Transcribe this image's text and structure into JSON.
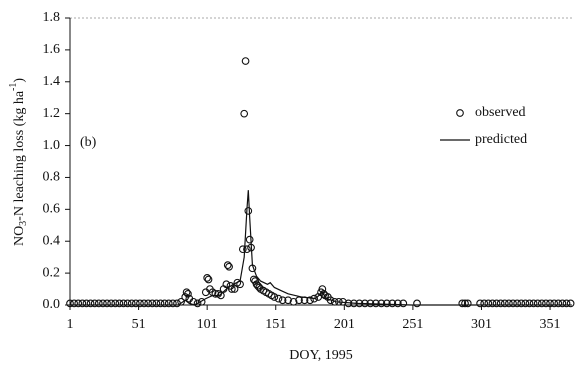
{
  "chart_data": {
    "type": "scatter-line",
    "annotation": "(b)",
    "xlabel": "DOY, 1995",
    "ylabel_parts": [
      "NO",
      "3",
      "-N leaching loss (kg ha",
      "-1",
      ")"
    ],
    "xlim": [
      1,
      367
    ],
    "ylim": [
      0,
      1.8
    ],
    "xticks": [
      1,
      51,
      101,
      151,
      201,
      251,
      301,
      351
    ],
    "yticks": [
      {
        "value": 0,
        "label": "0.0"
      },
      0.2,
      0.4,
      0.6,
      0.8,
      {
        "value": 1,
        "label": "1.0"
      },
      1.2,
      1.4,
      1.6,
      1.8
    ],
    "legend": "right",
    "series": [
      {
        "name": "observed",
        "color": "#111111",
        "marker": "circle",
        "x": [
          1,
          4,
          7,
          10,
          13,
          16,
          19,
          22,
          25,
          28,
          31,
          34,
          37,
          40,
          43,
          46,
          49,
          52,
          55,
          58,
          61,
          64,
          67,
          70,
          73,
          76,
          79,
          82,
          85,
          86,
          87,
          88,
          91,
          94,
          97,
          100,
          101,
          102,
          103,
          105,
          107,
          109,
          111,
          113,
          115,
          116,
          117,
          118,
          119,
          121,
          123,
          125,
          127,
          128,
          129,
          130,
          131,
          132,
          133,
          134,
          135,
          136,
          137,
          138,
          139,
          140,
          142,
          144,
          146,
          148,
          150,
          153,
          156,
          160,
          164,
          168,
          172,
          176,
          179,
          182,
          184,
          185,
          186,
          187,
          189,
          191,
          194,
          197,
          200,
          204,
          208,
          212,
          216,
          220,
          224,
          228,
          232,
          236,
          240,
          244,
          254,
          287,
          289,
          291,
          300,
          303,
          306,
          309,
          312,
          315,
          318,
          321,
          324,
          327,
          330,
          333,
          336,
          339,
          342,
          345,
          348,
          351,
          354,
          357,
          360,
          363,
          366
        ],
        "values": [
          0.01,
          0.01,
          0.01,
          0.01,
          0.01,
          0.01,
          0.01,
          0.01,
          0.01,
          0.01,
          0.01,
          0.01,
          0.01,
          0.01,
          0.01,
          0.01,
          0.01,
          0.01,
          0.01,
          0.01,
          0.01,
          0.01,
          0.01,
          0.01,
          0.01,
          0.01,
          0.01,
          0.02,
          0.05,
          0.08,
          0.07,
          0.04,
          0.02,
          0.01,
          0.02,
          0.08,
          0.17,
          0.16,
          0.1,
          0.08,
          0.07,
          0.07,
          0.06,
          0.1,
          0.13,
          0.25,
          0.24,
          0.12,
          0.1,
          0.1,
          0.14,
          0.13,
          0.35,
          1.2,
          1.53,
          0.35,
          0.59,
          0.41,
          0.36,
          0.23,
          0.16,
          0.15,
          0.13,
          0.12,
          0.11,
          0.1,
          0.09,
          0.08,
          0.07,
          0.06,
          0.05,
          0.04,
          0.03,
          0.03,
          0.02,
          0.03,
          0.03,
          0.03,
          0.04,
          0.05,
          0.08,
          0.1,
          0.07,
          0.06,
          0.05,
          0.03,
          0.02,
          0.02,
          0.02,
          0.01,
          0.01,
          0.01,
          0.01,
          0.01,
          0.01,
          0.01,
          0.01,
          0.01,
          0.01,
          0.01,
          0.01,
          0.01,
          0.01,
          0.01,
          0.01,
          0.01,
          0.01,
          0.01,
          0.01,
          0.01,
          0.01,
          0.01,
          0.01,
          0.01,
          0.01,
          0.01,
          0.01,
          0.01,
          0.01,
          0.01,
          0.01,
          0.01,
          0.01,
          0.01,
          0.01,
          0.01,
          0.01
        ]
      },
      {
        "name": "predicted",
        "color": "#111111",
        "marker": "line",
        "x": [
          1,
          80,
          85,
          88,
          92,
          100,
          105,
          110,
          115,
          120,
          125,
          128,
          130,
          131,
          132,
          134,
          137,
          140,
          145,
          147,
          150,
          155,
          160,
          170,
          180,
          185,
          188,
          195,
          210,
          250,
          300,
          366
        ],
        "values": [
          0,
          0,
          0.03,
          0.01,
          0,
          0.04,
          0.06,
          0.06,
          0.1,
          0.13,
          0.15,
          0.3,
          0.6,
          0.72,
          0.55,
          0.25,
          0.18,
          0.15,
          0.13,
          0.14,
          0.11,
          0.09,
          0.07,
          0.05,
          0.04,
          0.08,
          0.04,
          0.02,
          0.01,
          0,
          0,
          0
        ]
      }
    ]
  }
}
